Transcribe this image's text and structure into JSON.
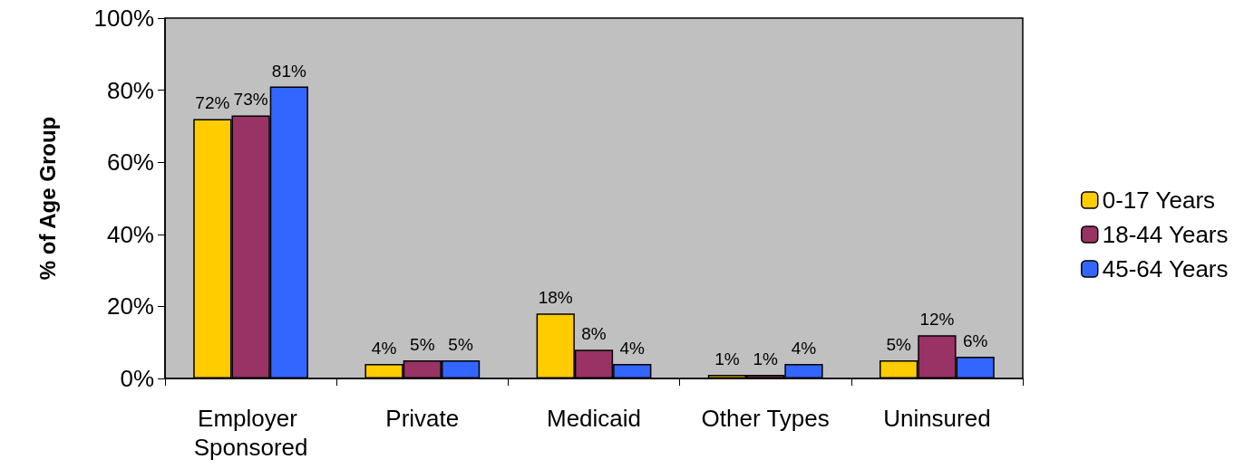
{
  "chart_data": {
    "type": "bar",
    "ylabel": "% of Age Group",
    "categories": [
      "Employer Sponsored",
      "Private",
      "Medicaid",
      "Other Types",
      "Uninsured"
    ],
    "series": [
      {
        "name": "0-17 Years",
        "color": "#ffcc00",
        "values": [
          72,
          4,
          18,
          1,
          5
        ],
        "value_labels": [
          "72%",
          "4%",
          "18%",
          "1%",
          "5%"
        ]
      },
      {
        "name": "18-44 Years",
        "color": "#993366",
        "values": [
          73,
          5,
          8,
          1,
          12
        ],
        "value_labels": [
          "73%",
          "5%",
          "8%",
          "1%",
          "12%"
        ]
      },
      {
        "name": "45-64 Years",
        "color": "#3366ff",
        "values": [
          81,
          5,
          4,
          4,
          6
        ],
        "value_labels": [
          "81%",
          "5%",
          "4%",
          "4%",
          "6%"
        ]
      }
    ],
    "ylim": [
      0,
      100
    ],
    "yticks": [
      {
        "value": 0,
        "label": "0%"
      },
      {
        "value": 20,
        "label": "20%"
      },
      {
        "value": 40,
        "label": "40%"
      },
      {
        "value": 60,
        "label": "60%"
      },
      {
        "value": 80,
        "label": "80%"
      },
      {
        "value": 100,
        "label": "100%"
      }
    ],
    "grid": false,
    "legend": "right"
  }
}
